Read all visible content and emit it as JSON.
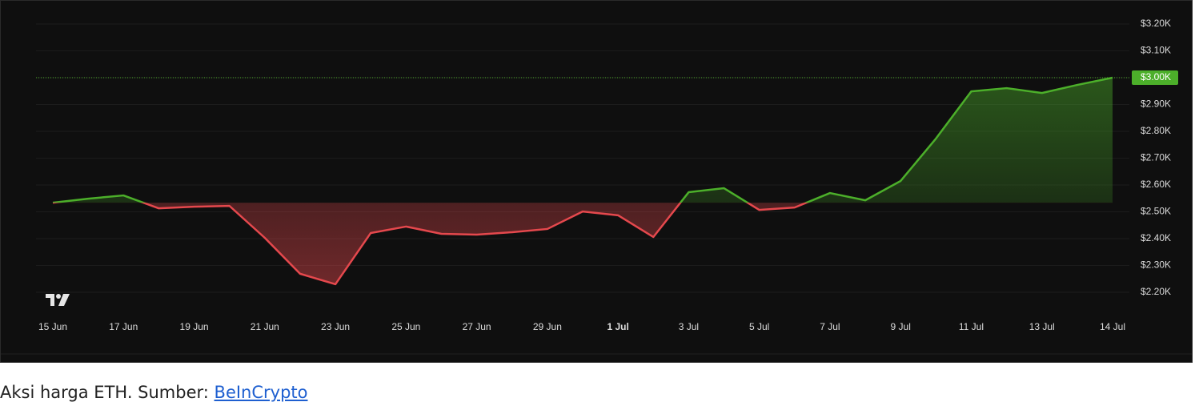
{
  "chart_data": {
    "type": "line",
    "categories": [
      "15 Jun",
      null,
      "17 Jun",
      null,
      "19 Jun",
      null,
      "21 Jun",
      null,
      "23 Jun",
      null,
      "25 Jun",
      null,
      "27 Jun",
      null,
      "29 Jun",
      null,
      "1 Jul",
      null,
      "3 Jul",
      null,
      "5 Jul",
      null,
      "7 Jul",
      null,
      "9 Jul",
      null,
      "11 Jul",
      null,
      "13 Jul",
      null,
      "14 Jul"
    ],
    "series": [
      {
        "name": "ETH",
        "color": "#4caf2a",
        "down_color": "#e5484d",
        "values": [
          2534,
          2549,
          2561,
          2513,
          2519,
          2522,
          2403,
          2269,
          2230,
          2421,
          2445,
          2418,
          2415,
          2424,
          2436,
          2501,
          2487,
          2406,
          2573,
          2588,
          2507,
          2516,
          2570,
          2543,
          2615,
          2773,
          2949,
          2961,
          2943,
          2973,
          3000
        ]
      }
    ],
    "ylim": [
      2150,
      3250
    ],
    "yticks": [
      {
        "value": 2200,
        "label": "$2.20K"
      },
      {
        "value": 2300,
        "label": "$2.30K"
      },
      {
        "value": 2400,
        "label": "$2.40K"
      },
      {
        "value": 2500,
        "label": "$2.50K"
      },
      {
        "value": 2600,
        "label": "$2.60K"
      },
      {
        "value": 2700,
        "label": "$2.70K"
      },
      {
        "value": 2800,
        "label": "$2.80K"
      },
      {
        "value": 2900,
        "label": "$2.90K"
      },
      {
        "value": 3000,
        "label": "$3.00K"
      },
      {
        "value": 3100,
        "label": "$3.10K"
      },
      {
        "value": 3200,
        "label": "$3.20K"
      }
    ],
    "last_price": {
      "value": 3000,
      "label": "$3.00K"
    },
    "grid": true
  },
  "caption": {
    "text": "Aksi harga ETH. Sumber: ",
    "link": "BeInCrypto"
  }
}
